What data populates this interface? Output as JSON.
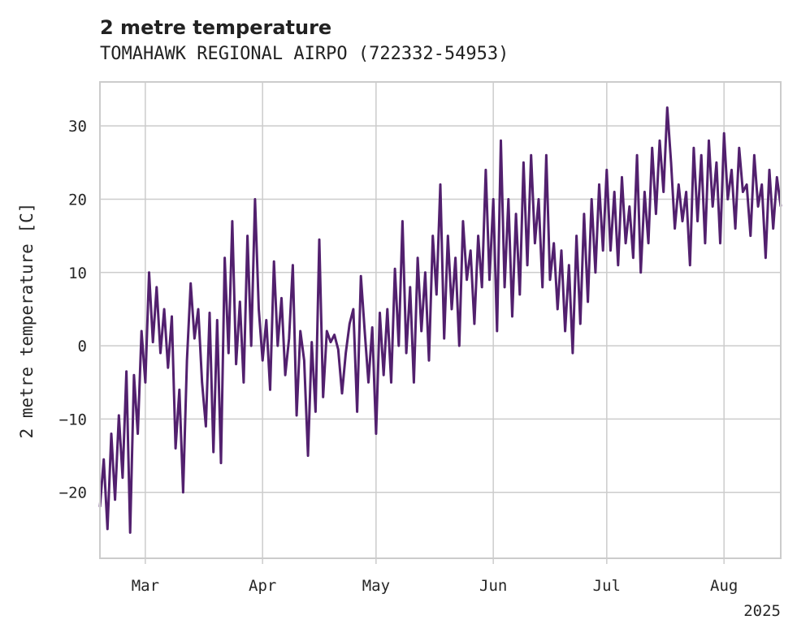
{
  "chart_data": {
    "type": "line",
    "title": "2 metre temperature",
    "subtitle": "TOMAHAWK REGIONAL AIRPO (722332-54953)",
    "ylabel": "2 metre temperature [C]",
    "xlabel": "",
    "year_label": "2025",
    "xlim": [
      "2025-02-17",
      "2025-08-16"
    ],
    "ylim": [
      -29,
      36
    ],
    "yticks": [
      -20,
      -10,
      0,
      10,
      20,
      30
    ],
    "xticks": [
      {
        "date": "2025-03-01",
        "label": "Mar"
      },
      {
        "date": "2025-04-01",
        "label": "Apr"
      },
      {
        "date": "2025-05-01",
        "label": "May"
      },
      {
        "date": "2025-06-01",
        "label": "Jun"
      },
      {
        "date": "2025-07-01",
        "label": "Jul"
      },
      {
        "date": "2025-08-01",
        "label": "Aug"
      }
    ],
    "grid": true,
    "legend": "none",
    "series": [
      {
        "color": "#52206e",
        "points": [
          [
            "2025-02-17",
            -22.0
          ],
          [
            "2025-02-18",
            -15.5
          ],
          [
            "2025-02-19",
            -25.0
          ],
          [
            "2025-02-20",
            -12.0
          ],
          [
            "2025-02-21",
            -21.0
          ],
          [
            "2025-02-22",
            -9.5
          ],
          [
            "2025-02-23",
            -18.0
          ],
          [
            "2025-02-24",
            -3.5
          ],
          [
            "2025-02-25",
            -25.5
          ],
          [
            "2025-02-26",
            -4.0
          ],
          [
            "2025-02-27",
            -12.0
          ],
          [
            "2025-02-28",
            2.0
          ],
          [
            "2025-03-01",
            -5.0
          ],
          [
            "2025-03-02",
            10.0
          ],
          [
            "2025-03-03",
            0.5
          ],
          [
            "2025-03-04",
            8.0
          ],
          [
            "2025-03-05",
            -1.0
          ],
          [
            "2025-03-06",
            5.0
          ],
          [
            "2025-03-07",
            -3.0
          ],
          [
            "2025-03-08",
            4.0
          ],
          [
            "2025-03-09",
            -14.0
          ],
          [
            "2025-03-10",
            -6.0
          ],
          [
            "2025-03-11",
            -20.0
          ],
          [
            "2025-03-12",
            -2.0
          ],
          [
            "2025-03-13",
            8.5
          ],
          [
            "2025-03-14",
            1.0
          ],
          [
            "2025-03-15",
            5.0
          ],
          [
            "2025-03-16",
            -5.0
          ],
          [
            "2025-03-17",
            -11.0
          ],
          [
            "2025-03-18",
            4.5
          ],
          [
            "2025-03-19",
            -14.5
          ],
          [
            "2025-03-20",
            3.5
          ],
          [
            "2025-03-21",
            -16.0
          ],
          [
            "2025-03-22",
            12.0
          ],
          [
            "2025-03-23",
            -1.0
          ],
          [
            "2025-03-24",
            17.0
          ],
          [
            "2025-03-25",
            -2.5
          ],
          [
            "2025-03-26",
            6.0
          ],
          [
            "2025-03-27",
            -5.0
          ],
          [
            "2025-03-28",
            15.0
          ],
          [
            "2025-03-29",
            0.0
          ],
          [
            "2025-03-30",
            20.0
          ],
          [
            "2025-03-31",
            5.0
          ],
          [
            "2025-04-01",
            -2.0
          ],
          [
            "2025-04-02",
            3.5
          ],
          [
            "2025-04-03",
            -6.0
          ],
          [
            "2025-04-04",
            11.5
          ],
          [
            "2025-04-05",
            0.0
          ],
          [
            "2025-04-06",
            6.5
          ],
          [
            "2025-04-07",
            -4.0
          ],
          [
            "2025-04-08",
            1.0
          ],
          [
            "2025-04-09",
            11.0
          ],
          [
            "2025-04-10",
            -9.5
          ],
          [
            "2025-04-11",
            2.0
          ],
          [
            "2025-04-12",
            -2.0
          ],
          [
            "2025-04-13",
            -15.0
          ],
          [
            "2025-04-14",
            0.5
          ],
          [
            "2025-04-15",
            -9.0
          ],
          [
            "2025-04-16",
            14.5
          ],
          [
            "2025-04-17",
            -7.0
          ],
          [
            "2025-04-18",
            2.0
          ],
          [
            "2025-04-19",
            0.5
          ],
          [
            "2025-04-20",
            1.5
          ],
          [
            "2025-04-21",
            -0.5
          ],
          [
            "2025-04-22",
            -6.5
          ],
          [
            "2025-04-23",
            -1.0
          ],
          [
            "2025-04-24",
            3.0
          ],
          [
            "2025-04-25",
            5.0
          ],
          [
            "2025-04-26",
            -9.0
          ],
          [
            "2025-04-27",
            9.5
          ],
          [
            "2025-04-28",
            2.0
          ],
          [
            "2025-04-29",
            -5.0
          ],
          [
            "2025-04-30",
            2.5
          ],
          [
            "2025-05-01",
            -12.0
          ],
          [
            "2025-05-02",
            4.5
          ],
          [
            "2025-05-03",
            -4.0
          ],
          [
            "2025-05-04",
            5.0
          ],
          [
            "2025-05-05",
            -5.0
          ],
          [
            "2025-05-06",
            10.5
          ],
          [
            "2025-05-07",
            0.0
          ],
          [
            "2025-05-08",
            17.0
          ],
          [
            "2025-05-09",
            -1.0
          ],
          [
            "2025-05-10",
            8.0
          ],
          [
            "2025-05-11",
            -5.0
          ],
          [
            "2025-05-12",
            12.0
          ],
          [
            "2025-05-13",
            2.0
          ],
          [
            "2025-05-14",
            10.0
          ],
          [
            "2025-05-15",
            -2.0
          ],
          [
            "2025-05-16",
            15.0
          ],
          [
            "2025-05-17",
            7.0
          ],
          [
            "2025-05-18",
            22.0
          ],
          [
            "2025-05-19",
            1.0
          ],
          [
            "2025-05-20",
            15.0
          ],
          [
            "2025-05-21",
            5.0
          ],
          [
            "2025-05-22",
            12.0
          ],
          [
            "2025-05-23",
            0.0
          ],
          [
            "2025-05-24",
            17.0
          ],
          [
            "2025-05-25",
            9.0
          ],
          [
            "2025-05-26",
            13.0
          ],
          [
            "2025-05-27",
            3.0
          ],
          [
            "2025-05-28",
            15.0
          ],
          [
            "2025-05-29",
            8.0
          ],
          [
            "2025-05-30",
            24.0
          ],
          [
            "2025-05-31",
            9.0
          ],
          [
            "2025-06-01",
            20.0
          ],
          [
            "2025-06-02",
            2.0
          ],
          [
            "2025-06-03",
            28.0
          ],
          [
            "2025-06-04",
            8.0
          ],
          [
            "2025-06-05",
            20.0
          ],
          [
            "2025-06-06",
            4.0
          ],
          [
            "2025-06-07",
            18.0
          ],
          [
            "2025-06-08",
            7.0
          ],
          [
            "2025-06-09",
            25.0
          ],
          [
            "2025-06-10",
            11.0
          ],
          [
            "2025-06-11",
            26.0
          ],
          [
            "2025-06-12",
            14.0
          ],
          [
            "2025-06-13",
            20.0
          ],
          [
            "2025-06-14",
            8.0
          ],
          [
            "2025-06-15",
            26.0
          ],
          [
            "2025-06-16",
            9.0
          ],
          [
            "2025-06-17",
            14.0
          ],
          [
            "2025-06-18",
            5.0
          ],
          [
            "2025-06-19",
            13.0
          ],
          [
            "2025-06-20",
            2.0
          ],
          [
            "2025-06-21",
            11.0
          ],
          [
            "2025-06-22",
            -1.0
          ],
          [
            "2025-06-23",
            15.0
          ],
          [
            "2025-06-24",
            3.0
          ],
          [
            "2025-06-25",
            18.0
          ],
          [
            "2025-06-26",
            6.0
          ],
          [
            "2025-06-27",
            20.0
          ],
          [
            "2025-06-28",
            10.0
          ],
          [
            "2025-06-29",
            22.0
          ],
          [
            "2025-06-30",
            13.0
          ],
          [
            "2025-07-01",
            24.0
          ],
          [
            "2025-07-02",
            13.0
          ],
          [
            "2025-07-03",
            21.0
          ],
          [
            "2025-07-04",
            11.0
          ],
          [
            "2025-07-05",
            23.0
          ],
          [
            "2025-07-06",
            14.0
          ],
          [
            "2025-07-07",
            19.0
          ],
          [
            "2025-07-08",
            12.0
          ],
          [
            "2025-07-09",
            26.0
          ],
          [
            "2025-07-10",
            10.0
          ],
          [
            "2025-07-11",
            21.0
          ],
          [
            "2025-07-12",
            14.0
          ],
          [
            "2025-07-13",
            27.0
          ],
          [
            "2025-07-14",
            18.0
          ],
          [
            "2025-07-15",
            28.0
          ],
          [
            "2025-07-16",
            21.0
          ],
          [
            "2025-07-17",
            32.5
          ],
          [
            "2025-07-18",
            25.0
          ],
          [
            "2025-07-19",
            16.0
          ],
          [
            "2025-07-20",
            22.0
          ],
          [
            "2025-07-21",
            17.0
          ],
          [
            "2025-07-22",
            21.0
          ],
          [
            "2025-07-23",
            11.0
          ],
          [
            "2025-07-24",
            27.0
          ],
          [
            "2025-07-25",
            17.0
          ],
          [
            "2025-07-26",
            26.0
          ],
          [
            "2025-07-27",
            14.0
          ],
          [
            "2025-07-28",
            28.0
          ],
          [
            "2025-07-29",
            19.0
          ],
          [
            "2025-07-30",
            25.0
          ],
          [
            "2025-07-31",
            14.0
          ],
          [
            "2025-08-01",
            29.0
          ],
          [
            "2025-08-02",
            20.0
          ],
          [
            "2025-08-03",
            24.0
          ],
          [
            "2025-08-04",
            16.0
          ],
          [
            "2025-08-05",
            27.0
          ],
          [
            "2025-08-06",
            21.0
          ],
          [
            "2025-08-07",
            22.0
          ],
          [
            "2025-08-08",
            15.0
          ],
          [
            "2025-08-09",
            26.0
          ],
          [
            "2025-08-10",
            19.0
          ],
          [
            "2025-08-11",
            22.0
          ],
          [
            "2025-08-12",
            12.0
          ],
          [
            "2025-08-13",
            24.0
          ],
          [
            "2025-08-14",
            16.0
          ],
          [
            "2025-08-15",
            23.0
          ],
          [
            "2025-08-16",
            19.0
          ]
        ]
      }
    ]
  }
}
